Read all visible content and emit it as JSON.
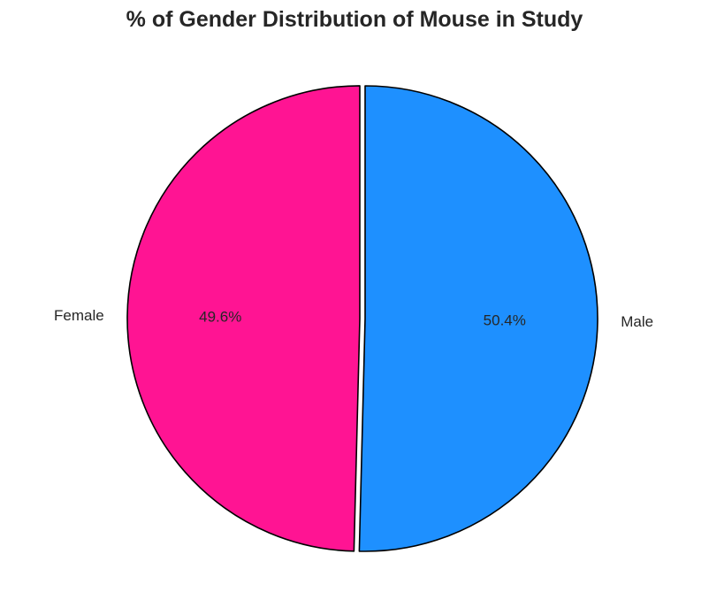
{
  "chart_data": {
    "type": "pie",
    "title": "% of Gender Distribution of Mouse in Study",
    "slices": [
      {
        "label": "Female",
        "value": 49.6,
        "percent_label": "49.6%",
        "color": "#ff1493",
        "exploded": true
      },
      {
        "label": "Male",
        "value": 50.4,
        "percent_label": "50.4%",
        "color": "#1e90ff",
        "exploded": false
      }
    ],
    "start_angle_deg": 90,
    "direction": "counterclockwise",
    "edge_color": "#000000"
  }
}
